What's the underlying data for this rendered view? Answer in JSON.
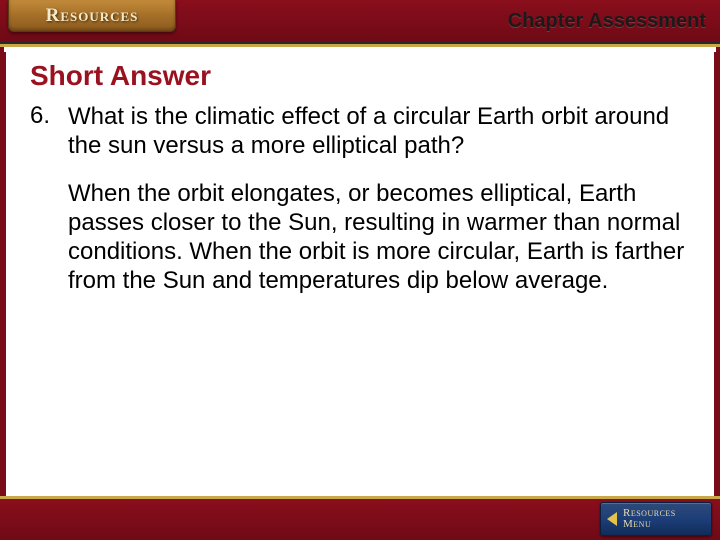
{
  "header": {
    "tab_label": "Resources",
    "chapter_title": "Chapter Assessment"
  },
  "colors": {
    "header_bg_top": "#8a0e1c",
    "header_bg_bottom": "#6f0a16",
    "accent_gold": "#c9a84a",
    "tab_gold_top": "#c28a3a",
    "tab_gold_bottom": "#8c5a1e",
    "section_title": "#9a1220",
    "menu_bg_top": "#2e4a7a",
    "menu_bg_bottom": "#122c58",
    "body_text": "#000000",
    "background": "#ffffff"
  },
  "typography": {
    "body_fontsize_pt": 18,
    "section_title_fontsize_pt": 21,
    "chapter_title_fontsize_pt": 15,
    "font_family": "Arial"
  },
  "content": {
    "section_title": "Short Answer",
    "question_number": "6.",
    "question_text": "What is the climatic effect of a circular Earth orbit around the sun versus a more elliptical path?",
    "answer_text": "When the orbit elongates, or becomes elliptical, Earth passes closer to the Sun, resulting in warmer than normal conditions. When the orbit is more circular, Earth is farther from the Sun and temperatures dip below average."
  },
  "footer": {
    "menu_line1": "Resources",
    "menu_line2": "Menu"
  }
}
